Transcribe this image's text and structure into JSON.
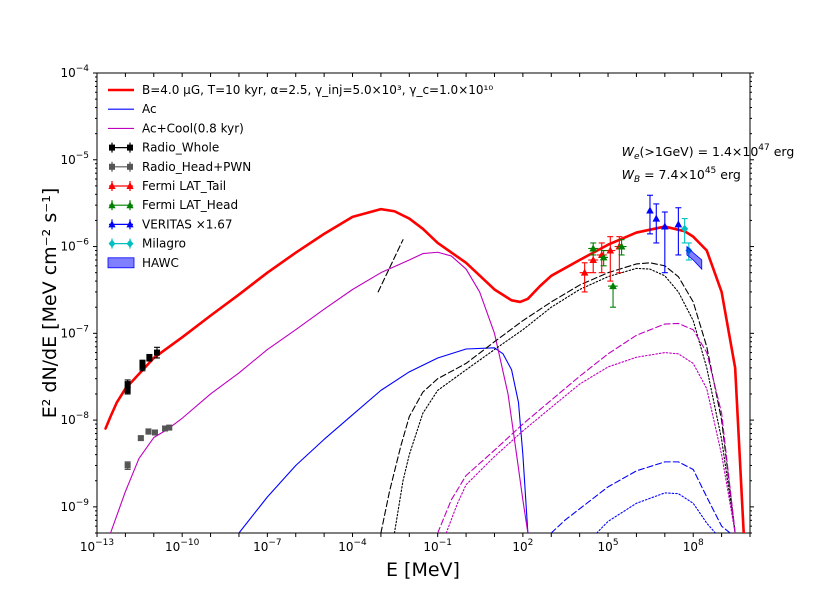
{
  "chart_data": {
    "type": "line",
    "title": "",
    "xlabel": "E [MeV]",
    "ylabel": "E² dN/dE [MeV cm⁻² s⁻¹]",
    "xscale": "log",
    "yscale": "log",
    "xlim": [
      1e-13,
      10000000000.0
    ],
    "ylim": [
      5e-10,
      0.0001
    ],
    "x_tick_exponents": [
      -13,
      -10,
      -7,
      -4,
      -1,
      2,
      5,
      8
    ],
    "y_tick_exponents": [
      -9,
      -8,
      -7,
      -6,
      -5,
      -4
    ],
    "legend_position": "top-left",
    "annotations": [
      {
        "id": "we",
        "label": "W",
        "sub": "e",
        "rest": "(>1GeV) = 1.4×10",
        "sup": "47",
        "unit": " erg",
        "at": [
          300000.0,
          1.1e-05
        ]
      },
      {
        "id": "wb",
        "label": "W",
        "sub": "B",
        "rest": " = 7.4×10",
        "sup": "45",
        "unit": " erg",
        "at": [
          300000.0,
          6e-06
        ]
      }
    ],
    "series": [
      {
        "name": "B=4.0 μG, T=10 kyr, α=2.5, γ_inj=5.0×10³, γ_c=1.0×10¹⁰",
        "kind": "line",
        "color": "#ff0000",
        "dash": "solid",
        "weight": "thick",
        "in_legend": true,
        "x": [
          2e-13,
          3e-13,
          5e-13,
          1e-12,
          3e-12,
          1e-11,
          1e-10,
          1e-09,
          1e-08,
          1e-07,
          1e-06,
          1e-05,
          0.0001,
          0.001,
          0.003,
          0.01,
          0.03,
          0.1,
          1,
          10,
          40,
          80,
          150,
          400,
          1000.0,
          10000.0,
          100000.0,
          1000000.0,
          10000000.0,
          50000000.0,
          100000000.0,
          300000000.0,
          1000000000.0,
          3000000000.0,
          6000000000.0
        ],
        "y": [
          8e-09,
          1.1e-08,
          1.6e-08,
          2.3e-08,
          3.4e-08,
          5.2e-08,
          9e-08,
          1.6e-07,
          2.8e-07,
          5e-07,
          8.5e-07,
          1.4e-06,
          2.2e-06,
          2.7e-06,
          2.55e-06,
          2.1e-06,
          1.6e-06,
          1.1e-06,
          6.5e-07,
          3.2e-07,
          2.4e-07,
          2.3e-07,
          2.5e-07,
          3.5e-07,
          4.6e-07,
          7e-07,
          1.05e-06,
          1.45e-06,
          1.7e-06,
          1.5e-06,
          1.3e-06,
          9e-07,
          3e-07,
          4e-08,
          5e-10
        ]
      },
      {
        "name": "Ac",
        "kind": "line",
        "color": "#0000ff",
        "dash": "solid",
        "weight": "thin",
        "in_legend": true,
        "x": [
          1e-08,
          1e-07,
          1e-06,
          1e-05,
          0.0001,
          0.001,
          0.01,
          0.1,
          1,
          10,
          20,
          40,
          70,
          100,
          150
        ],
        "y": [
          5e-10,
          1.3e-09,
          3e-09,
          6e-09,
          1.15e-08,
          2.2e-08,
          3.6e-08,
          5.2e-08,
          6.6e-08,
          6.8e-08,
          5.8e-08,
          3.8e-08,
          1.6e-08,
          4e-09,
          5e-10
        ]
      },
      {
        "name": "Ac+Cool(0.8 kyr)",
        "kind": "line",
        "color": "#bf00bf",
        "dash": "solid",
        "weight": "thin",
        "in_legend": true,
        "x": [
          3e-13,
          1e-12,
          3e-12,
          1e-11,
          3e-11,
          1e-10,
          1e-09,
          1e-08,
          1e-07,
          1e-06,
          1e-05,
          0.0001,
          0.001,
          0.01,
          0.03,
          0.1,
          0.3,
          1,
          3,
          10,
          30,
          60,
          100,
          150
        ],
        "y": [
          5e-10,
          1.5e-09,
          3.6e-09,
          6.3e-09,
          7.8e-09,
          1.05e-08,
          2e-08,
          3.5e-08,
          6.5e-08,
          1.1e-07,
          1.9e-07,
          3.2e-07,
          5e-07,
          7e-07,
          8.3e-07,
          8.6e-07,
          7.8e-07,
          5.5e-07,
          3e-07,
          1e-07,
          2e-08,
          4e-09,
          1.2e-09,
          5e-10
        ]
      },
      {
        "name": "IC total (black dashed)",
        "kind": "line",
        "color": "#000000",
        "dash": "dashed",
        "weight": "thin",
        "in_legend": false,
        "x": [
          0.001,
          0.002,
          0.005,
          0.01,
          0.03,
          0.1,
          1,
          10,
          100,
          1000.0,
          10000.0,
          100000.0,
          1000000.0,
          3000000.0,
          10000000.0,
          30000000.0,
          100000000.0,
          300000000.0,
          1000000000.0,
          3000000000.0
        ],
        "y": [
          5e-10,
          1.5e-09,
          5e-09,
          1.1e-08,
          2.1e-08,
          3e-08,
          4.5e-08,
          8e-08,
          1.4e-07,
          2.3e-07,
          3.6e-07,
          5e-07,
          6.3e-07,
          6.5e-07,
          6e-07,
          4.5e-07,
          2.3e-07,
          7e-08,
          1e-08,
          5e-10
        ]
      },
      {
        "name": "IC component (black dotted)",
        "kind": "line",
        "color": "#000000",
        "dash": "dotted",
        "weight": "thin",
        "in_legend": false,
        "x": [
          0.003,
          0.006,
          0.01,
          0.03,
          0.1,
          1,
          10,
          100,
          1000.0,
          10000.0,
          100000.0,
          1000000.0,
          3000000.0,
          10000000.0,
          30000000.0,
          100000000.0,
          300000000.0,
          1000000000.0,
          3000000000.0
        ],
        "y": [
          5e-10,
          2e-09,
          4e-09,
          1.2e-08,
          2.2e-08,
          3.8e-08,
          6.5e-08,
          1.1e-07,
          2e-07,
          3.2e-07,
          4.5e-07,
          5.6e-07,
          5.5e-07,
          4.6e-07,
          3e-07,
          1.4e-07,
          4e-08,
          6e-09,
          5e-10
        ]
      },
      {
        "name": "IC (magenta dashed)",
        "kind": "line",
        "color": "#bf00bf",
        "dash": "dashed",
        "weight": "thin",
        "in_legend": false,
        "x": [
          0.1,
          0.3,
          1,
          10,
          100,
          1000.0,
          10000.0,
          100000.0,
          1000000.0,
          10000000.0,
          30000000.0,
          100000000.0,
          300000000.0,
          1000000000.0,
          3000000000.0
        ],
        "y": [
          5e-10,
          1.2e-09,
          2.3e-09,
          4.5e-09,
          9e-09,
          1.7e-08,
          3.2e-08,
          5.8e-08,
          9.5e-08,
          1.28e-07,
          1.3e-07,
          1.1e-07,
          6e-08,
          1.2e-08,
          5e-10
        ]
      },
      {
        "name": "IC (magenta dotted)",
        "kind": "line",
        "color": "#bf00bf",
        "dash": "dotted",
        "weight": "thin",
        "in_legend": false,
        "x": [
          0.2,
          0.5,
          1,
          10,
          100,
          1000.0,
          10000.0,
          100000.0,
          1000000.0,
          10000000.0,
          30000000.0,
          100000000.0,
          300000000.0,
          1000000000.0,
          3000000000.0
        ],
        "y": [
          5e-10,
          1.1e-09,
          1.8e-09,
          3.8e-09,
          7.5e-09,
          1.4e-08,
          2.6e-08,
          4.1e-08,
          5.3e-08,
          6e-08,
          5.8e-08,
          4.5e-08,
          2.3e-08,
          4e-09,
          5e-10
        ]
      },
      {
        "name": "IC (blue dashed)",
        "kind": "line",
        "color": "#0000ff",
        "dash": "dashed",
        "weight": "thin",
        "in_legend": false,
        "x": [
          1000,
          3000,
          10000.0,
          100000.0,
          1000000.0,
          10000000.0,
          30000000.0,
          100000000.0,
          300000000.0,
          1000000000.0,
          2000000000.0
        ],
        "y": [
          5e-10,
          7e-10,
          9.5e-10,
          1.7e-09,
          2.6e-09,
          3.3e-09,
          3.3e-09,
          2.7e-09,
          1.3e-09,
          6e-10,
          5e-10
        ]
      },
      {
        "name": "IC (blue dotted)",
        "kind": "line",
        "color": "#0000ff",
        "dash": "dotted",
        "weight": "thin",
        "in_legend": false,
        "x": [
          40000.0,
          100000.0,
          1000000.0,
          10000000.0,
          30000000.0,
          100000000.0,
          300000000.0,
          600000000.0
        ],
        "y": [
          5e-10,
          6.8e-10,
          1.1e-09,
          1.45e-09,
          1.42e-09,
          1.1e-09,
          6.5e-10,
          5e-10
        ]
      },
      {
        "name": "Radio_Whole",
        "kind": "errorbar",
        "color": "#000000",
        "marker": "square",
        "in_legend": true,
        "points": [
          {
            "x": 1.2e-12,
            "y": 2.6e-08,
            "yerr": [
              2e-09,
              3e-09
            ]
          },
          {
            "x": 1.2e-12,
            "y": 2.2e-08,
            "yerr": [
              2e-09,
              2e-09
            ]
          },
          {
            "x": 4e-12,
            "y": 4.5e-08,
            "yerr": [
              4e-09,
              4e-09
            ]
          },
          {
            "x": 4e-12,
            "y": 4.1e-08,
            "yerr": [
              4e-09,
              4e-09
            ]
          },
          {
            "x": 7e-12,
            "y": 5.2e-08,
            "yerr": [
              4e-09,
              5e-09
            ]
          },
          {
            "x": 1.3e-11,
            "y": 6e-08,
            "yerr": [
              8e-09,
              9e-09
            ]
          }
        ]
      },
      {
        "name": "Radio_Head+PWN",
        "kind": "errorbar",
        "color": "#555555",
        "marker": "square",
        "in_legend": true,
        "points": [
          {
            "x": 1.2e-12,
            "y": 3e-09,
            "yerr": [
              3e-10,
              3e-10
            ]
          },
          {
            "x": 3.5e-12,
            "y": 6.2e-09,
            "yerr": [
              3e-10,
              3e-10
            ]
          },
          {
            "x": 6.5e-12,
            "y": 7.4e-09,
            "yerr": [
              5e-10,
              5e-10
            ]
          },
          {
            "x": 1.1e-11,
            "y": 7.2e-09,
            "yerr": [
              4e-10,
              4e-10
            ]
          },
          {
            "x": 2.5e-11,
            "y": 8e-09,
            "yerr": [
              4e-10,
              4e-10
            ]
          },
          {
            "x": 3.5e-11,
            "y": 8.2e-09,
            "yerr": [
              4e-10,
              4e-10
            ]
          }
        ]
      },
      {
        "name": "Fermi LAT_Tail",
        "kind": "errorbar",
        "color": "#ff0000",
        "marker": "triangle",
        "in_legend": true,
        "points": [
          {
            "x": 15000.0,
            "y": 5e-07,
            "xerr": [
              5000.0,
              10000.0
            ],
            "yerr": [
              2e-07,
              1.5e-07
            ]
          },
          {
            "x": 30000.0,
            "y": 7e-07,
            "xerr": [
              10000.0,
              15000.0
            ],
            "yerr": [
              2e-07,
              2e-07
            ]
          },
          {
            "x": 60000.0,
            "y": 8e-07,
            "xerr": [
              20000.0,
              30000.0
            ],
            "yerr": [
              3e-07,
              3e-07
            ]
          },
          {
            "x": 120000.0,
            "y": 9e-07,
            "xerr": [
              40000.0,
              60000.0
            ],
            "yerr": [
              5e-07,
              4e-07
            ]
          },
          {
            "x": 250000.0,
            "y": 1e-06,
            "xerr": [
              80000.0,
              120000.0
            ],
            "yerr": [
              5e-07,
              3e-07
            ]
          }
        ]
      },
      {
        "name": "Fermi LAT_Head",
        "kind": "errorbar",
        "color": "#008000",
        "marker": "triangle",
        "in_legend": true,
        "points": [
          {
            "x": 30000.0,
            "y": 9.5e-07,
            "xerr": [
              10000.0,
              15000.0
            ],
            "yerr": [
              1.5e-07,
              1.5e-07
            ]
          },
          {
            "x": 70000.0,
            "y": 7.5e-07,
            "xerr": [
              20000.0,
              30000.0
            ],
            "yerr": [
              1.5e-07,
              1.5e-07
            ]
          },
          {
            "x": 150000.0,
            "y": 3.5e-07,
            "xerr": [
              50000.0,
              70000.0
            ],
            "yerr": [
              1.5e-07,
              0
            ]
          },
          {
            "x": 300000.0,
            "y": 1e-06,
            "xerr": [
              100000.0,
              150000.0
            ],
            "yerr": [
              2e-07,
              2e-07
            ]
          }
        ]
      },
      {
        "name": "VERITAS ×1.67",
        "kind": "errorbar",
        "color": "#0000ff",
        "marker": "triangle",
        "in_legend": true,
        "points": [
          {
            "x": 3000000.0,
            "y": 2.6e-06,
            "yerr": [
              1.2e-06,
              1.3e-06
            ]
          },
          {
            "x": 5000000.0,
            "y": 2.1e-06,
            "yerr": [
              1e-06,
              1e-06
            ]
          },
          {
            "x": 10000000.0,
            "y": 1.7e-06,
            "yerr": [
              1.2e-06,
              8e-07
            ]
          },
          {
            "x": 30000000.0,
            "y": 1.8e-06,
            "yerr": [
              1e-06,
              1e-06
            ]
          }
        ]
      },
      {
        "name": "Milagro",
        "kind": "errorbar",
        "color": "#00bfbf",
        "marker": "diamond",
        "in_legend": true,
        "points": [
          {
            "x": 50000000.0,
            "y": 1.6e-06,
            "yerr": [
              5e-07,
              5e-07
            ]
          },
          {
            "x": 70000000.0,
            "y": 9e-07,
            "yerr": [
              2e-07,
              2e-07
            ]
          }
        ]
      },
      {
        "name": "HAWC",
        "kind": "band",
        "color": "#0000ff",
        "in_legend": true,
        "x": [
          60000000.0,
          100000000.0,
          200000000.0
        ],
        "y_low": [
          8e-07,
          7e-07,
          5.5e-07
        ],
        "y_high": [
          1e-06,
          8.5e-07,
          7e-07
        ]
      },
      {
        "name": "X-ray constraint",
        "kind": "line",
        "color": "#000000",
        "dash": "dashed",
        "weight": "thin",
        "in_legend": false,
        "x": [
          0.0008,
          0.006
        ],
        "y": [
          3e-07,
          1.2e-06
        ]
      }
    ]
  }
}
